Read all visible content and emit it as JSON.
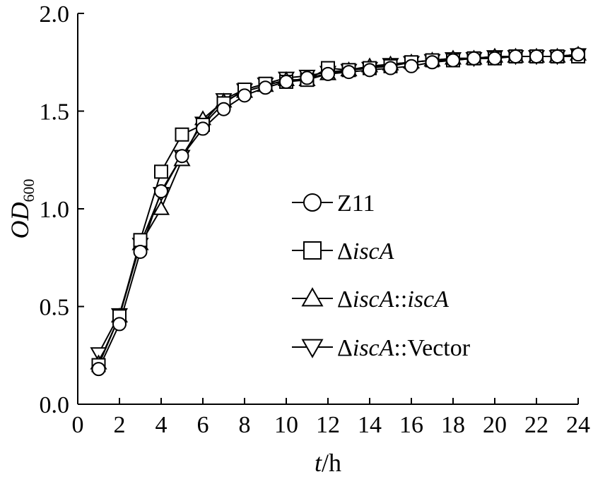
{
  "chart_data": {
    "type": "line",
    "xlabel": {
      "italic": "t",
      "rest": "/h"
    },
    "ylabel": {
      "main": "OD",
      "sub": "600"
    },
    "xlim": [
      0,
      24
    ],
    "ylim": [
      0.0,
      2.0
    ],
    "xticks": [
      "0",
      "2",
      "4",
      "6",
      "8",
      "10",
      "12",
      "14",
      "16",
      "18",
      "20",
      "22",
      "24"
    ],
    "yticks": [
      "0.0",
      "0.5",
      "1.0",
      "1.5",
      "2.0"
    ],
    "grid": false,
    "legend_position": "center-right",
    "x": [
      1,
      2,
      3,
      4,
      5,
      6,
      7,
      8,
      9,
      10,
      11,
      12,
      13,
      14,
      15,
      16,
      17,
      18,
      19,
      20,
      21,
      22,
      23,
      24
    ],
    "series": [
      {
        "name": "Z11",
        "legend": [
          {
            "t": "Z11",
            "i": false
          }
        ],
        "marker": "circle",
        "values": [
          0.18,
          0.41,
          0.78,
          1.09,
          1.27,
          1.41,
          1.51,
          1.58,
          1.62,
          1.65,
          1.67,
          1.69,
          1.7,
          1.71,
          1.72,
          1.73,
          1.75,
          1.76,
          1.77,
          1.77,
          1.78,
          1.78,
          1.78,
          1.79
        ]
      },
      {
        "name": "ΔiscA",
        "legend": [
          {
            "t": "Δ",
            "i": false
          },
          {
            "t": "iscA",
            "i": true
          }
        ],
        "marker": "square",
        "values": [
          0.2,
          0.45,
          0.84,
          1.19,
          1.38,
          1.43,
          1.54,
          1.61,
          1.64,
          1.65,
          1.66,
          1.72,
          1.71,
          1.72,
          1.73,
          1.75,
          1.76,
          1.76,
          1.77,
          1.77,
          1.78,
          1.78,
          1.78,
          1.78
        ]
      },
      {
        "name": "ΔiscA::iscA",
        "legend": [
          {
            "t": "Δ",
            "i": false
          },
          {
            "t": "iscA",
            "i": true
          },
          {
            "t": "::",
            "i": false
          },
          {
            "t": "iscA",
            "i": true
          }
        ],
        "marker": "triangle-up",
        "values": [
          0.21,
          0.45,
          0.82,
          1.0,
          1.25,
          1.46,
          1.55,
          1.6,
          1.63,
          1.66,
          1.66,
          1.69,
          1.71,
          1.73,
          1.74,
          1.75,
          1.76,
          1.77,
          1.77,
          1.78,
          1.78,
          1.78,
          1.78,
          1.79
        ]
      },
      {
        "name": "ΔiscA::Vector",
        "legend": [
          {
            "t": "Δ",
            "i": false
          },
          {
            "t": "iscA",
            "i": true
          },
          {
            "t": "::Vector",
            "i": false
          }
        ],
        "marker": "triangle-down",
        "values": [
          0.26,
          0.46,
          0.82,
          1.08,
          1.27,
          1.44,
          1.56,
          1.61,
          1.64,
          1.67,
          1.68,
          1.7,
          1.71,
          1.72,
          1.74,
          1.75,
          1.76,
          1.77,
          1.77,
          1.78,
          1.78,
          1.78,
          1.78,
          1.79
        ]
      }
    ]
  }
}
